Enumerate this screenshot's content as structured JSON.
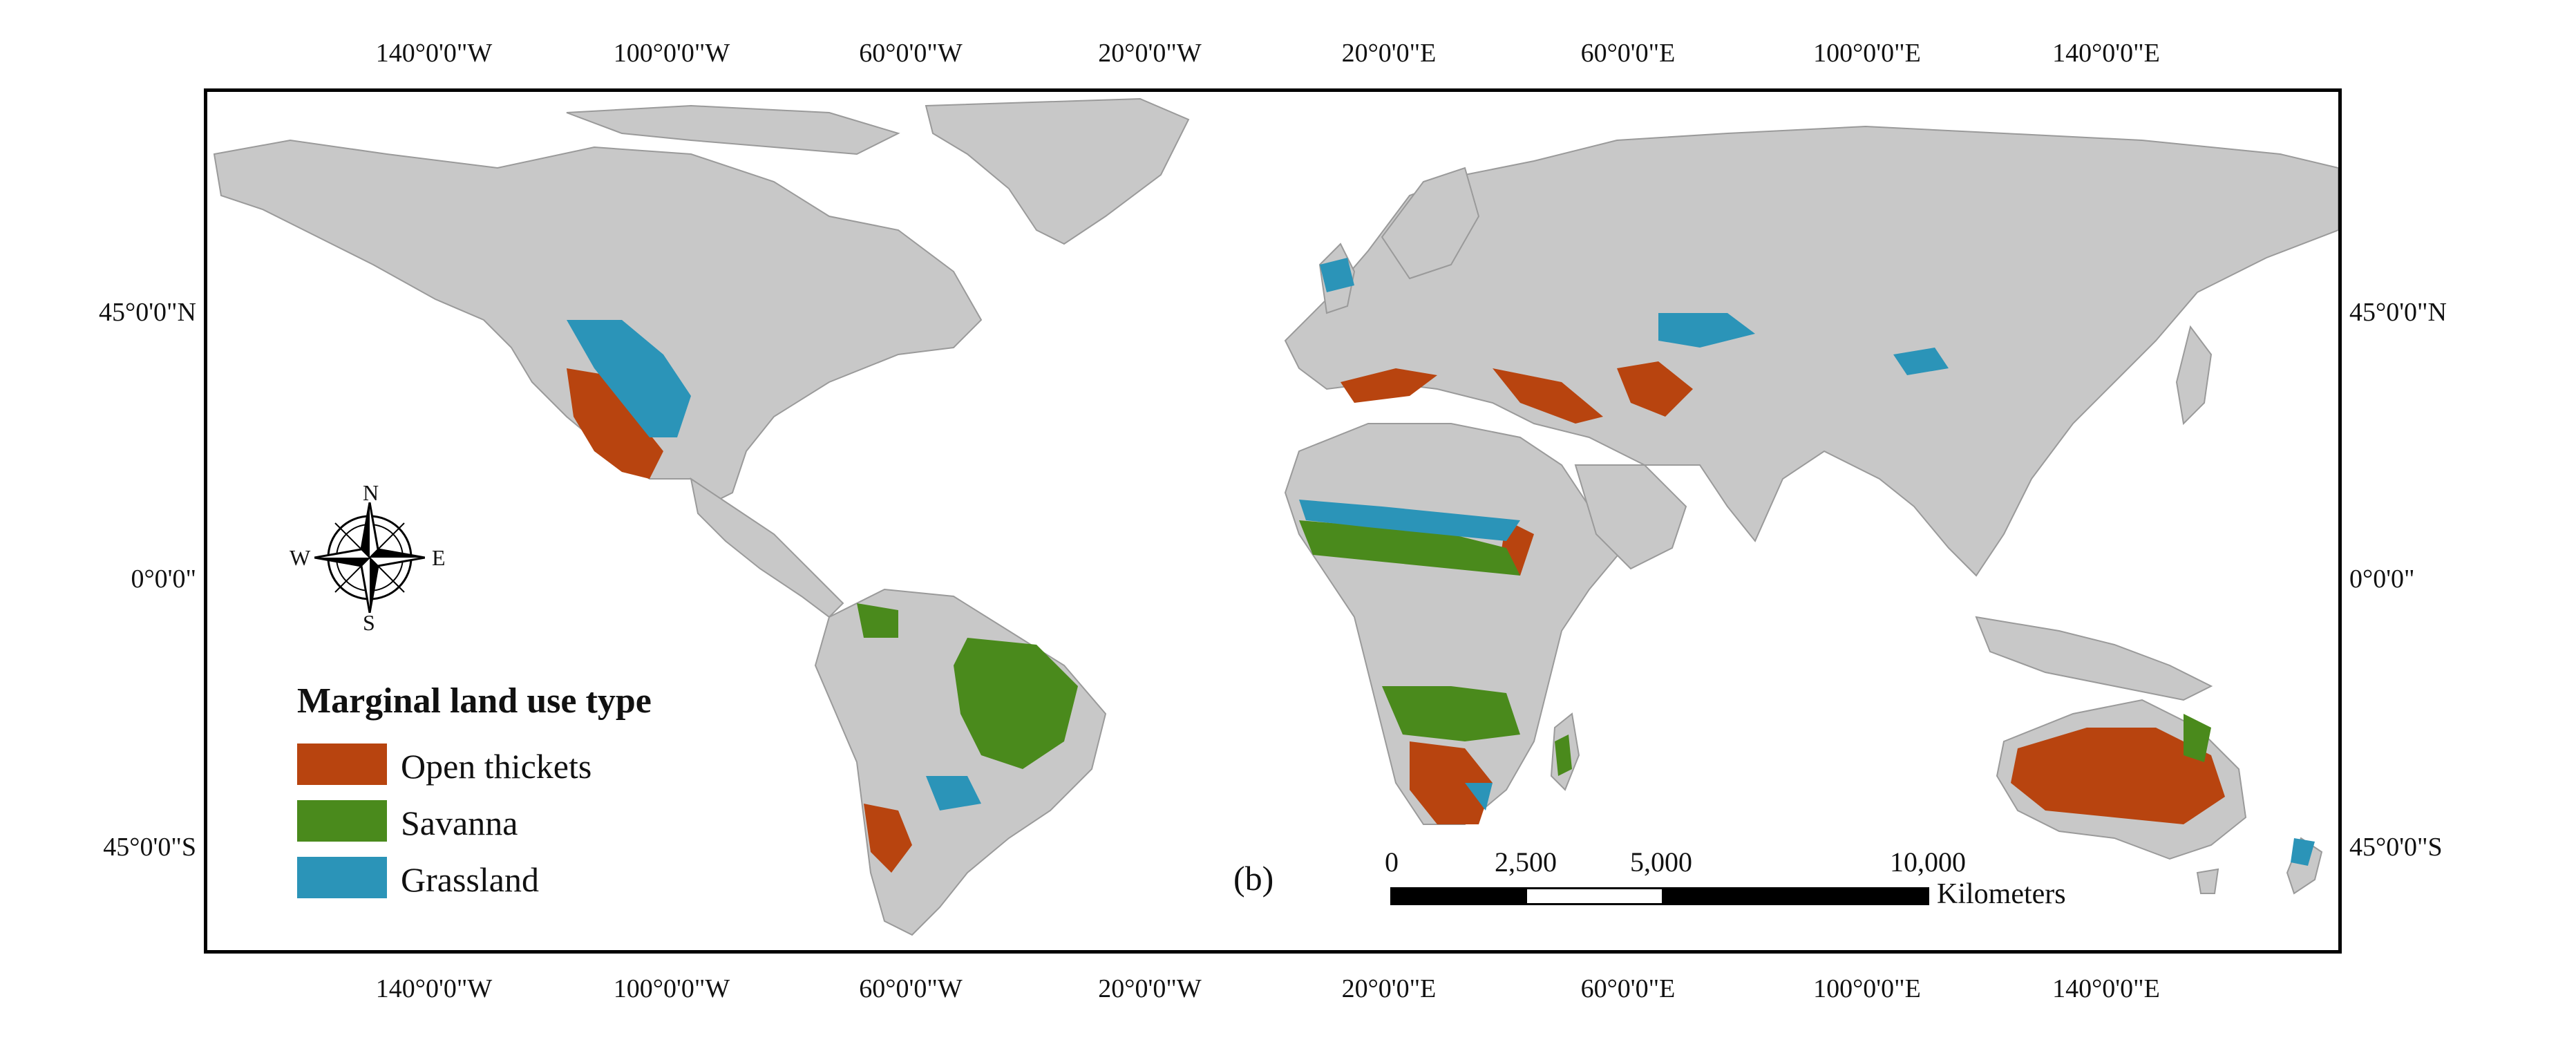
{
  "map": {
    "panel_label": "(b)",
    "lon_ticks_top": [
      "140°0'0\"W",
      "100°0'0\"W",
      "60°0'0\"W",
      "20°0'0\"W",
      "20°0'0\"E",
      "60°0'0\"E",
      "100°0'0\"E",
      "140°0'0\"E"
    ],
    "lon_ticks_bottom": [
      "140°0'0\"W",
      "100°0'0\"W",
      "60°0'0\"W",
      "20°0'0\"W",
      "20°0'0\"E",
      "60°0'0\"E",
      "100°0'0\"E",
      "140°0'0\"E"
    ],
    "lat_ticks_left": [
      "45°0'0\"N",
      "0°0'0\"",
      "45°0'0\"S"
    ],
    "lat_ticks_right": [
      "45°0'0\"N",
      "0°0'0\"",
      "45°0'0\"S"
    ],
    "land_color": "#c8c8c8",
    "ocean_color": "#ffffff"
  },
  "legend": {
    "title": "Marginal land use type",
    "items": [
      {
        "label": "Open thickets",
        "color": "#b8440f"
      },
      {
        "label": "Savanna",
        "color": "#4a8a1c"
      },
      {
        "label": "Grassland",
        "color": "#2b94b8"
      }
    ]
  },
  "scale_bar": {
    "labels": [
      "0",
      "2,500",
      "5,000",
      "10,000"
    ],
    "unit": "Kilometers"
  },
  "compass": {
    "n": "N",
    "s": "S",
    "e": "E",
    "w": "W"
  }
}
